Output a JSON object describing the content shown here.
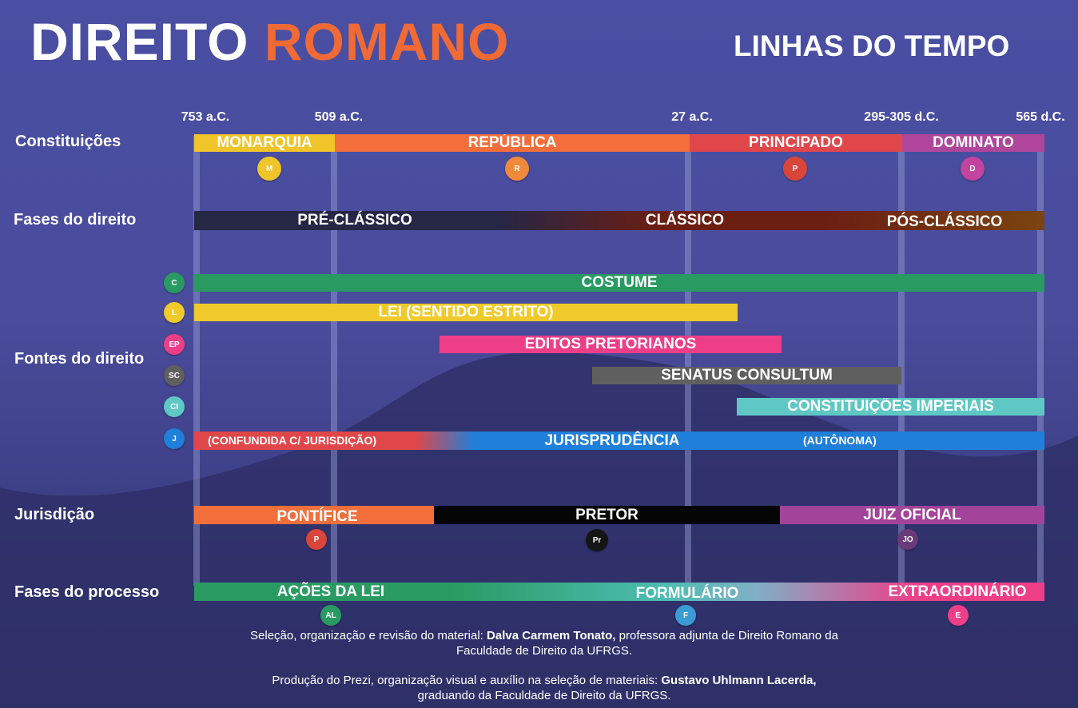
{
  "title": {
    "part1": "DIREITO",
    "part2": "ROMANO"
  },
  "subtitle": "LINHAS DO TEMPO",
  "dates": [
    "753 a.C.",
    "509 a.C.",
    "27 a.C.",
    "295-305 d.C.",
    "565 d.C."
  ],
  "rows": {
    "constituicoes": "Constituições",
    "fases_direito": "Fases do direito",
    "fontes": "Fontes do direito",
    "jurisdicao": "Jurisdição",
    "fases_processo": "Fases do processo"
  },
  "constituicoes": [
    {
      "label": "MONARQUIA",
      "badge": "M",
      "color": "#f0c52a"
    },
    {
      "label": "REPÚBLICA",
      "badge": "R",
      "color": "#f26f3b"
    },
    {
      "label": "PRINCIPADO",
      "badge": "P",
      "color": "#e0474a"
    },
    {
      "label": "DOMINATO",
      "badge": "D",
      "color": "#b0469c"
    }
  ],
  "fases_direito": [
    "PRÉ-CLÁSSICO",
    "CLÁSSICO",
    "PÓS-CLÁSSICO"
  ],
  "fontes": {
    "costume": {
      "label": "COSTUME",
      "badge": "C",
      "color": "#2a9a63"
    },
    "lei": {
      "label": "LEI (SENTIDO ESTRITO)",
      "badge": "L",
      "color": "#f0ca2a"
    },
    "editos": {
      "label": "EDITOS PRETORIANOS",
      "badge": "EP",
      "color": "#ee3e88"
    },
    "senatus": {
      "label": "SENATUS CONSULTUM",
      "badge": "SC",
      "color": "#5f5f5f"
    },
    "constituicoes_imperiais": {
      "label": "CONSTITUIÇÕES IMPERIAIS",
      "badge": "CI",
      "color": "#5fc8c4"
    },
    "jurisprudencia": {
      "label": "JURISPRUDÊNCIA",
      "badge": "J",
      "color": "#1f7fd9",
      "note_left": "(CONFUNDIDA C/ JURISDIÇÃO)",
      "note_right": "(AUTÔNOMA)"
    }
  },
  "jurisdicao": [
    {
      "label": "PONTÍFICE",
      "badge": "P",
      "color": "#f26f3b"
    },
    {
      "label": "PRETOR",
      "badge": "Pr",
      "color": "#050505"
    },
    {
      "label": "JUIZ OFICIAL",
      "badge": "JO",
      "color": "#a2449a"
    }
  ],
  "fases_processo": [
    {
      "label": "AÇÕES DA LEI",
      "badge": "AL",
      "color": "#2a9a63"
    },
    {
      "label": "FORMULÁRIO",
      "badge": "F",
      "color": "#3a9bd5"
    },
    {
      "label": "EXTRAORDINÁRIO",
      "badge": "E",
      "color": "#ee3e88"
    }
  ],
  "credits": {
    "line1_pre": "Seleção, organização e revisão do material: ",
    "line1_name": "Dalva Carmem Tonato,",
    "line1_post": " professora adjunta de Direito Romano da",
    "line2": "Faculdade de Direito da UFRGS.",
    "line3_pre": "Produção do Prezi, organização visual e auxílio na seleção de materiais: ",
    "line3_name": "Gustavo Uhlmann Lacerda,",
    "line4": "graduando da Faculdade de Direito da UFRGS."
  }
}
